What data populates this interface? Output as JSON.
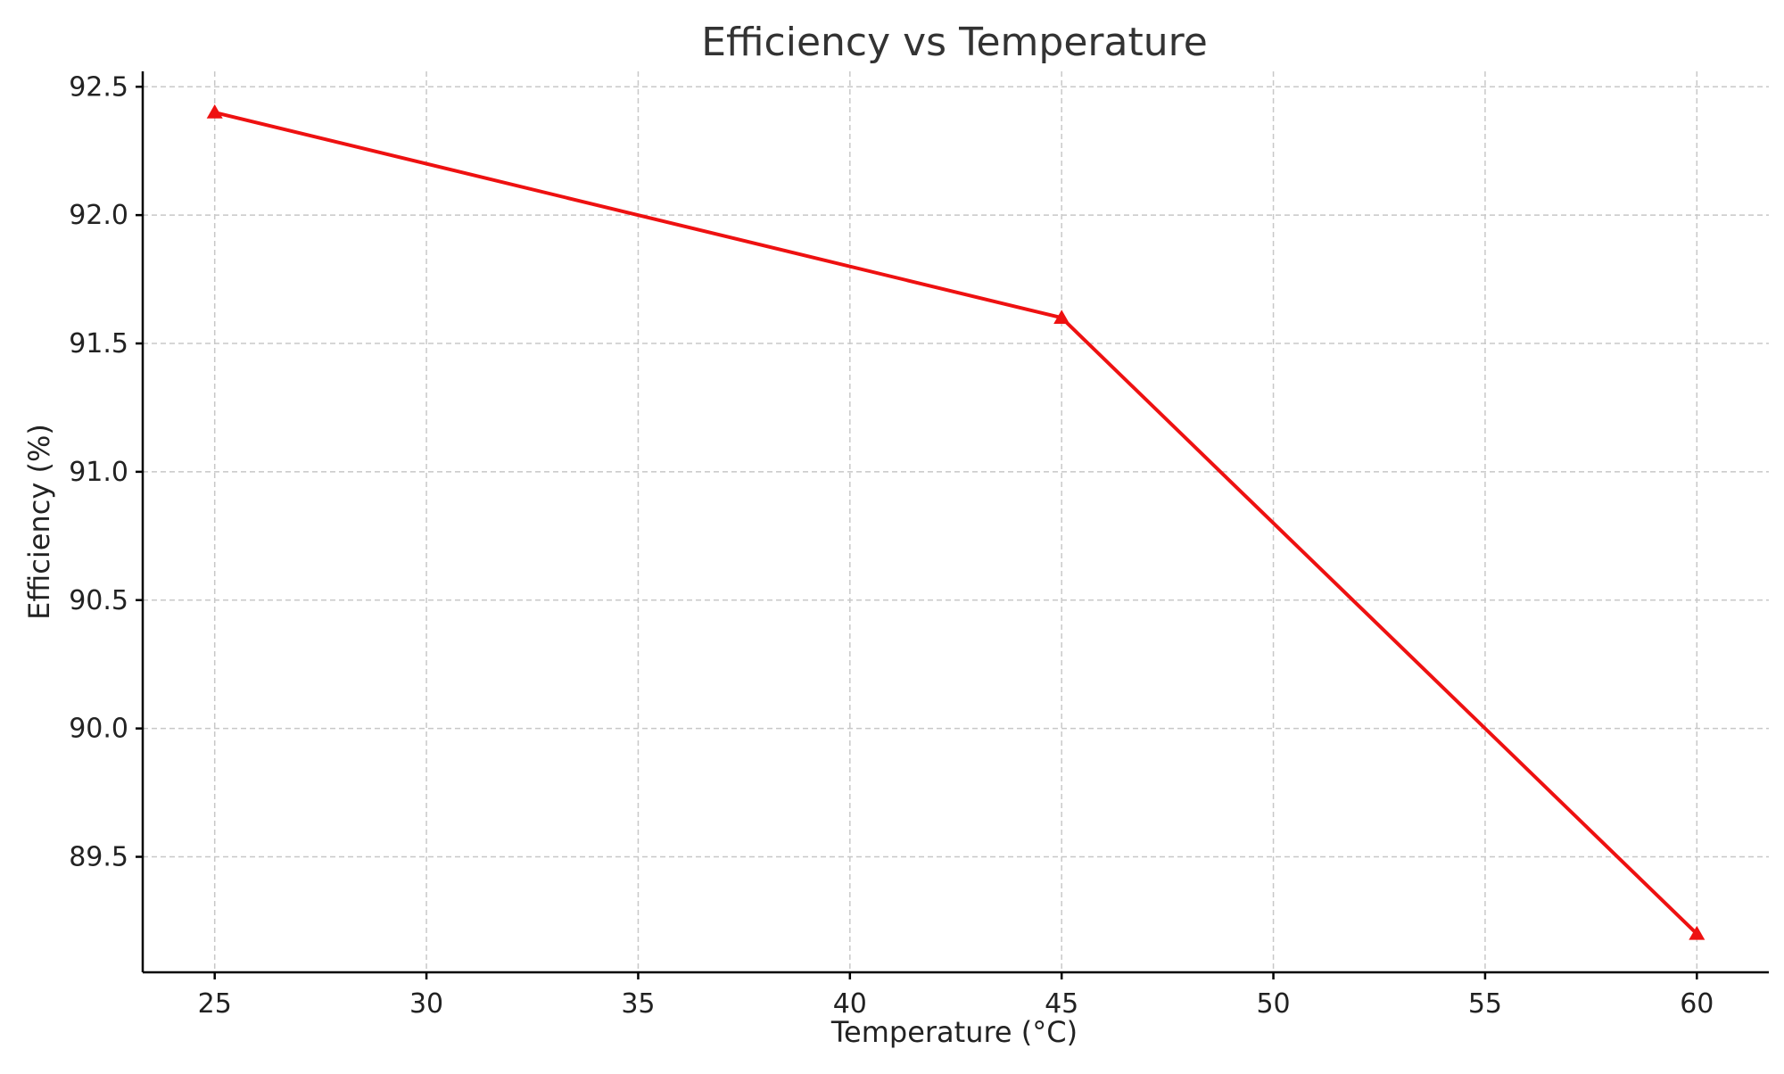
{
  "chart_data": {
    "type": "line",
    "title": "Efficiency vs Temperature",
    "xlabel": "Temperature (°C)",
    "ylabel": "Efficiency (%)",
    "xlim": [
      23.3,
      61.7
    ],
    "ylim": [
      89.05,
      92.56
    ],
    "x_ticks": [
      25,
      30,
      35,
      40,
      45,
      50,
      55,
      60
    ],
    "y_ticks": [
      89.5,
      90.0,
      90.5,
      91.0,
      91.5,
      92.0,
      92.5
    ],
    "x_tick_labels": [
      "25",
      "30",
      "35",
      "40",
      "45",
      "50",
      "55",
      "60"
    ],
    "y_tick_labels": [
      "89.5",
      "90.0",
      "90.5",
      "91.0",
      "91.5",
      "92.0",
      "92.5"
    ],
    "grid": true,
    "legend": "none",
    "marker": "triangle",
    "color": "#ee1111",
    "series": [
      {
        "x": [
          25,
          45,
          60
        ],
        "values": [
          92.4,
          91.6,
          89.2
        ]
      }
    ]
  }
}
